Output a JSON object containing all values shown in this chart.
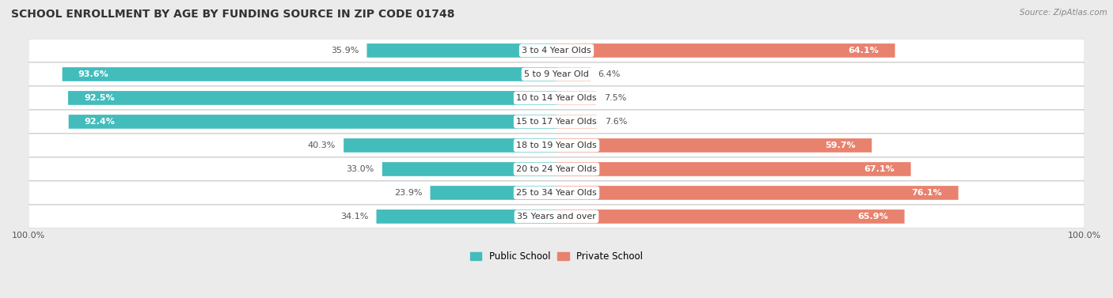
{
  "title": "SCHOOL ENROLLMENT BY AGE BY FUNDING SOURCE IN ZIP CODE 01748",
  "source": "Source: ZipAtlas.com",
  "categories": [
    "3 to 4 Year Olds",
    "5 to 9 Year Old",
    "10 to 14 Year Olds",
    "15 to 17 Year Olds",
    "18 to 19 Year Olds",
    "20 to 24 Year Olds",
    "25 to 34 Year Olds",
    "35 Years and over"
  ],
  "public_values": [
    35.9,
    93.6,
    92.5,
    92.4,
    40.3,
    33.0,
    23.9,
    34.1
  ],
  "private_values": [
    64.1,
    6.4,
    7.5,
    7.6,
    59.7,
    67.1,
    76.1,
    65.9
  ],
  "public_labels": [
    "35.9%",
    "93.6%",
    "92.5%",
    "92.4%",
    "40.3%",
    "33.0%",
    "23.9%",
    "34.1%"
  ],
  "private_labels": [
    "64.1%",
    "6.4%",
    "7.5%",
    "7.6%",
    "59.7%",
    "67.1%",
    "76.1%",
    "65.9%"
  ],
  "public_color": "#43BCBC",
  "private_color_large": "#E8826E",
  "private_color_small": "#F0B0A0",
  "background_color": "#EBEBEB",
  "row_bg_color": "#FFFFFF",
  "row_border_color": "#CCCCCC",
  "title_fontsize": 10,
  "label_fontsize": 8,
  "cat_fontsize": 8,
  "tick_fontsize": 8,
  "source_fontsize": 7.5,
  "threshold": 20
}
